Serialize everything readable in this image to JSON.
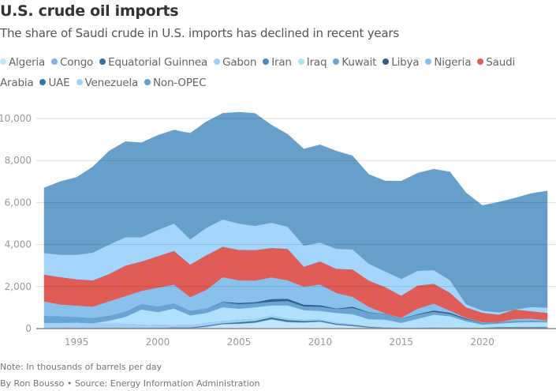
{
  "header": {
    "title": "U.S. crude oil imports",
    "subtitle": "The share of Saudi crude in U.S. imports has declined in recent years"
  },
  "footer": {
    "note": "Note: In thousands of barrels per day",
    "source": "By Ron Bousso • Source: Energy Information Administration"
  },
  "chart_data": {
    "type": "area",
    "stacked": true,
    "title": "U.S. crude oil imports",
    "subtitle": "The share of Saudi crude in U.S. imports has declined in recent years",
    "xlabel": "",
    "ylabel": "Thousands of barrels per day",
    "ylim": [
      0,
      10000
    ],
    "xlim": [
      1993,
      2024
    ],
    "grid": true,
    "legend_position": "top",
    "y_ticks": [
      0,
      2000,
      4000,
      6000,
      8000,
      10000
    ],
    "y_tick_labels": [
      "0",
      "2,000",
      "4,000",
      "6,000",
      "8,000",
      "10,000"
    ],
    "x_ticks": [
      1995,
      2000,
      2005,
      2010,
      2015,
      2020
    ],
    "x_tick_labels": [
      "1995",
      "2000",
      "2005",
      "2010",
      "2015",
      "2020"
    ],
    "x": [
      1993,
      1994,
      1995,
      1996,
      1997,
      1998,
      1999,
      2000,
      2001,
      2002,
      2003,
      2004,
      2005,
      2006,
      2007,
      2008,
      2009,
      2010,
      2011,
      2012,
      2013,
      2014,
      2015,
      2016,
      2017,
      2018,
      2019,
      2020,
      2021,
      2022,
      2023,
      2024
    ],
    "series": [
      {
        "name": "Algeria",
        "color": "#bfe6fb",
        "values": [
          10,
          20,
          25,
          20,
          10,
          10,
          10,
          10,
          10,
          10,
          90,
          210,
          230,
          280,
          440,
          310,
          290,
          330,
          180,
          120,
          40,
          10,
          10,
          10,
          20,
          20,
          10,
          10,
          10,
          10,
          10,
          10
        ]
      },
      {
        "name": "Congo",
        "color": "#7fb3df",
        "values": [
          20,
          20,
          20,
          20,
          20,
          20,
          20,
          20,
          20,
          20,
          20,
          20,
          20,
          20,
          20,
          20,
          20,
          20,
          20,
          20,
          20,
          20,
          20,
          20,
          20,
          20,
          20,
          20,
          20,
          20,
          20,
          20
        ]
      },
      {
        "name": "Equatorial Guinnea",
        "color": "#3c6e99",
        "values": [
          0,
          0,
          0,
          0,
          10,
          10,
          10,
          10,
          30,
          30,
          40,
          30,
          60,
          70,
          80,
          80,
          60,
          40,
          40,
          40,
          30,
          20,
          10,
          10,
          10,
          10,
          10,
          10,
          40,
          40,
          40,
          40
        ]
      },
      {
        "name": "Gabon",
        "color": "#9fd0f8",
        "values": [
          250,
          240,
          250,
          220,
          220,
          190,
          150,
          130,
          120,
          110,
          120,
          110,
          110,
          100,
          90,
          80,
          60,
          50,
          50,
          40,
          20,
          10,
          10,
          10,
          10,
          20,
          10,
          10,
          10,
          20,
          20,
          20
        ]
      },
      {
        "name": "Iran",
        "color": "#4a87ba",
        "values": [
          0,
          0,
          0,
          0,
          0,
          0,
          0,
          0,
          0,
          0,
          0,
          0,
          0,
          0,
          0,
          0,
          0,
          0,
          0,
          0,
          0,
          0,
          0,
          0,
          0,
          0,
          0,
          0,
          0,
          0,
          0,
          0
        ]
      },
      {
        "name": "Iraq",
        "color": "#b1e0fc",
        "values": [
          0,
          0,
          0,
          0,
          120,
          330,
          720,
          620,
          780,
          460,
          480,
          650,
          530,
          550,
          480,
          620,
          450,
          410,
          460,
          470,
          340,
          370,
          230,
          420,
          600,
          520,
          300,
          140,
          160,
          200,
          220,
          210
        ]
      },
      {
        "name": "Kuwait",
        "color": "#6ba3d1",
        "values": [
          320,
          300,
          250,
          240,
          230,
          240,
          250,
          260,
          240,
          220,
          210,
          240,
          220,
          190,
          180,
          210,
          180,
          200,
          190,
          300,
          320,
          270,
          200,
          200,
          150,
          110,
          100,
          80,
          60,
          60,
          60,
          60
        ]
      },
      {
        "name": "Libya",
        "color": "#2f5f8a",
        "values": [
          0,
          0,
          0,
          0,
          0,
          0,
          0,
          0,
          0,
          0,
          0,
          20,
          60,
          50,
          120,
          100,
          80,
          70,
          20,
          60,
          20,
          10,
          10,
          20,
          60,
          60,
          40,
          10,
          10,
          10,
          10,
          10
        ]
      },
      {
        "name": "Nigeria",
        "color": "#8ac0ec",
        "values": [
          700,
          570,
          555,
          550,
          690,
          750,
          640,
          900,
          900,
          650,
          890,
          1170,
          1070,
          1030,
          1030,
          880,
          860,
          980,
          740,
          470,
          250,
          20,
          30,
          260,
          320,
          100,
          20,
          30,
          10,
          100,
          100,
          30
        ]
      },
      {
        "name": "Saudi Arabia",
        "color": "#e05c56",
        "values": [
          1270,
          1300,
          1250,
          1250,
          1300,
          1450,
          1400,
          1500,
          1600,
          1550,
          1650,
          1450,
          1450,
          1450,
          1400,
          1500,
          950,
          1100,
          1150,
          1300,
          1250,
          1250,
          1050,
          1100,
          950,
          850,
          500,
          450,
          350,
          450,
          350,
          350
        ]
      },
      {
        "name": "UAE",
        "color": "#3a76a8",
        "values": [
          0,
          0,
          0,
          0,
          0,
          0,
          0,
          0,
          0,
          0,
          0,
          0,
          0,
          0,
          0,
          0,
          0,
          0,
          0,
          0,
          0,
          0,
          0,
          0,
          0,
          0,
          0,
          0,
          0,
          0,
          0,
          0
        ]
      },
      {
        "name": "Venezuela",
        "color": "#a6d5fb",
        "values": [
          1030,
          1070,
          1170,
          1320,
          1400,
          1350,
          1150,
          1250,
          1300,
          1200,
          1300,
          1300,
          1250,
          1150,
          1200,
          1050,
          1000,
          900,
          950,
          950,
          800,
          750,
          800,
          700,
          650,
          600,
          150,
          100,
          100,
          0,
          200,
          250
        ]
      },
      {
        "name": "Non-OPEC",
        "color": "#679fcb",
        "values": [
          3100,
          3480,
          3680,
          4080,
          4450,
          4550,
          4500,
          4500,
          4450,
          5050,
          5050,
          5050,
          5300,
          5350,
          4650,
          4400,
          4600,
          4650,
          4650,
          4450,
          4250,
          4300,
          4650,
          4650,
          4800,
          5150,
          5300,
          5000,
          5250,
          5300,
          5400,
          5550
        ]
      }
    ]
  }
}
